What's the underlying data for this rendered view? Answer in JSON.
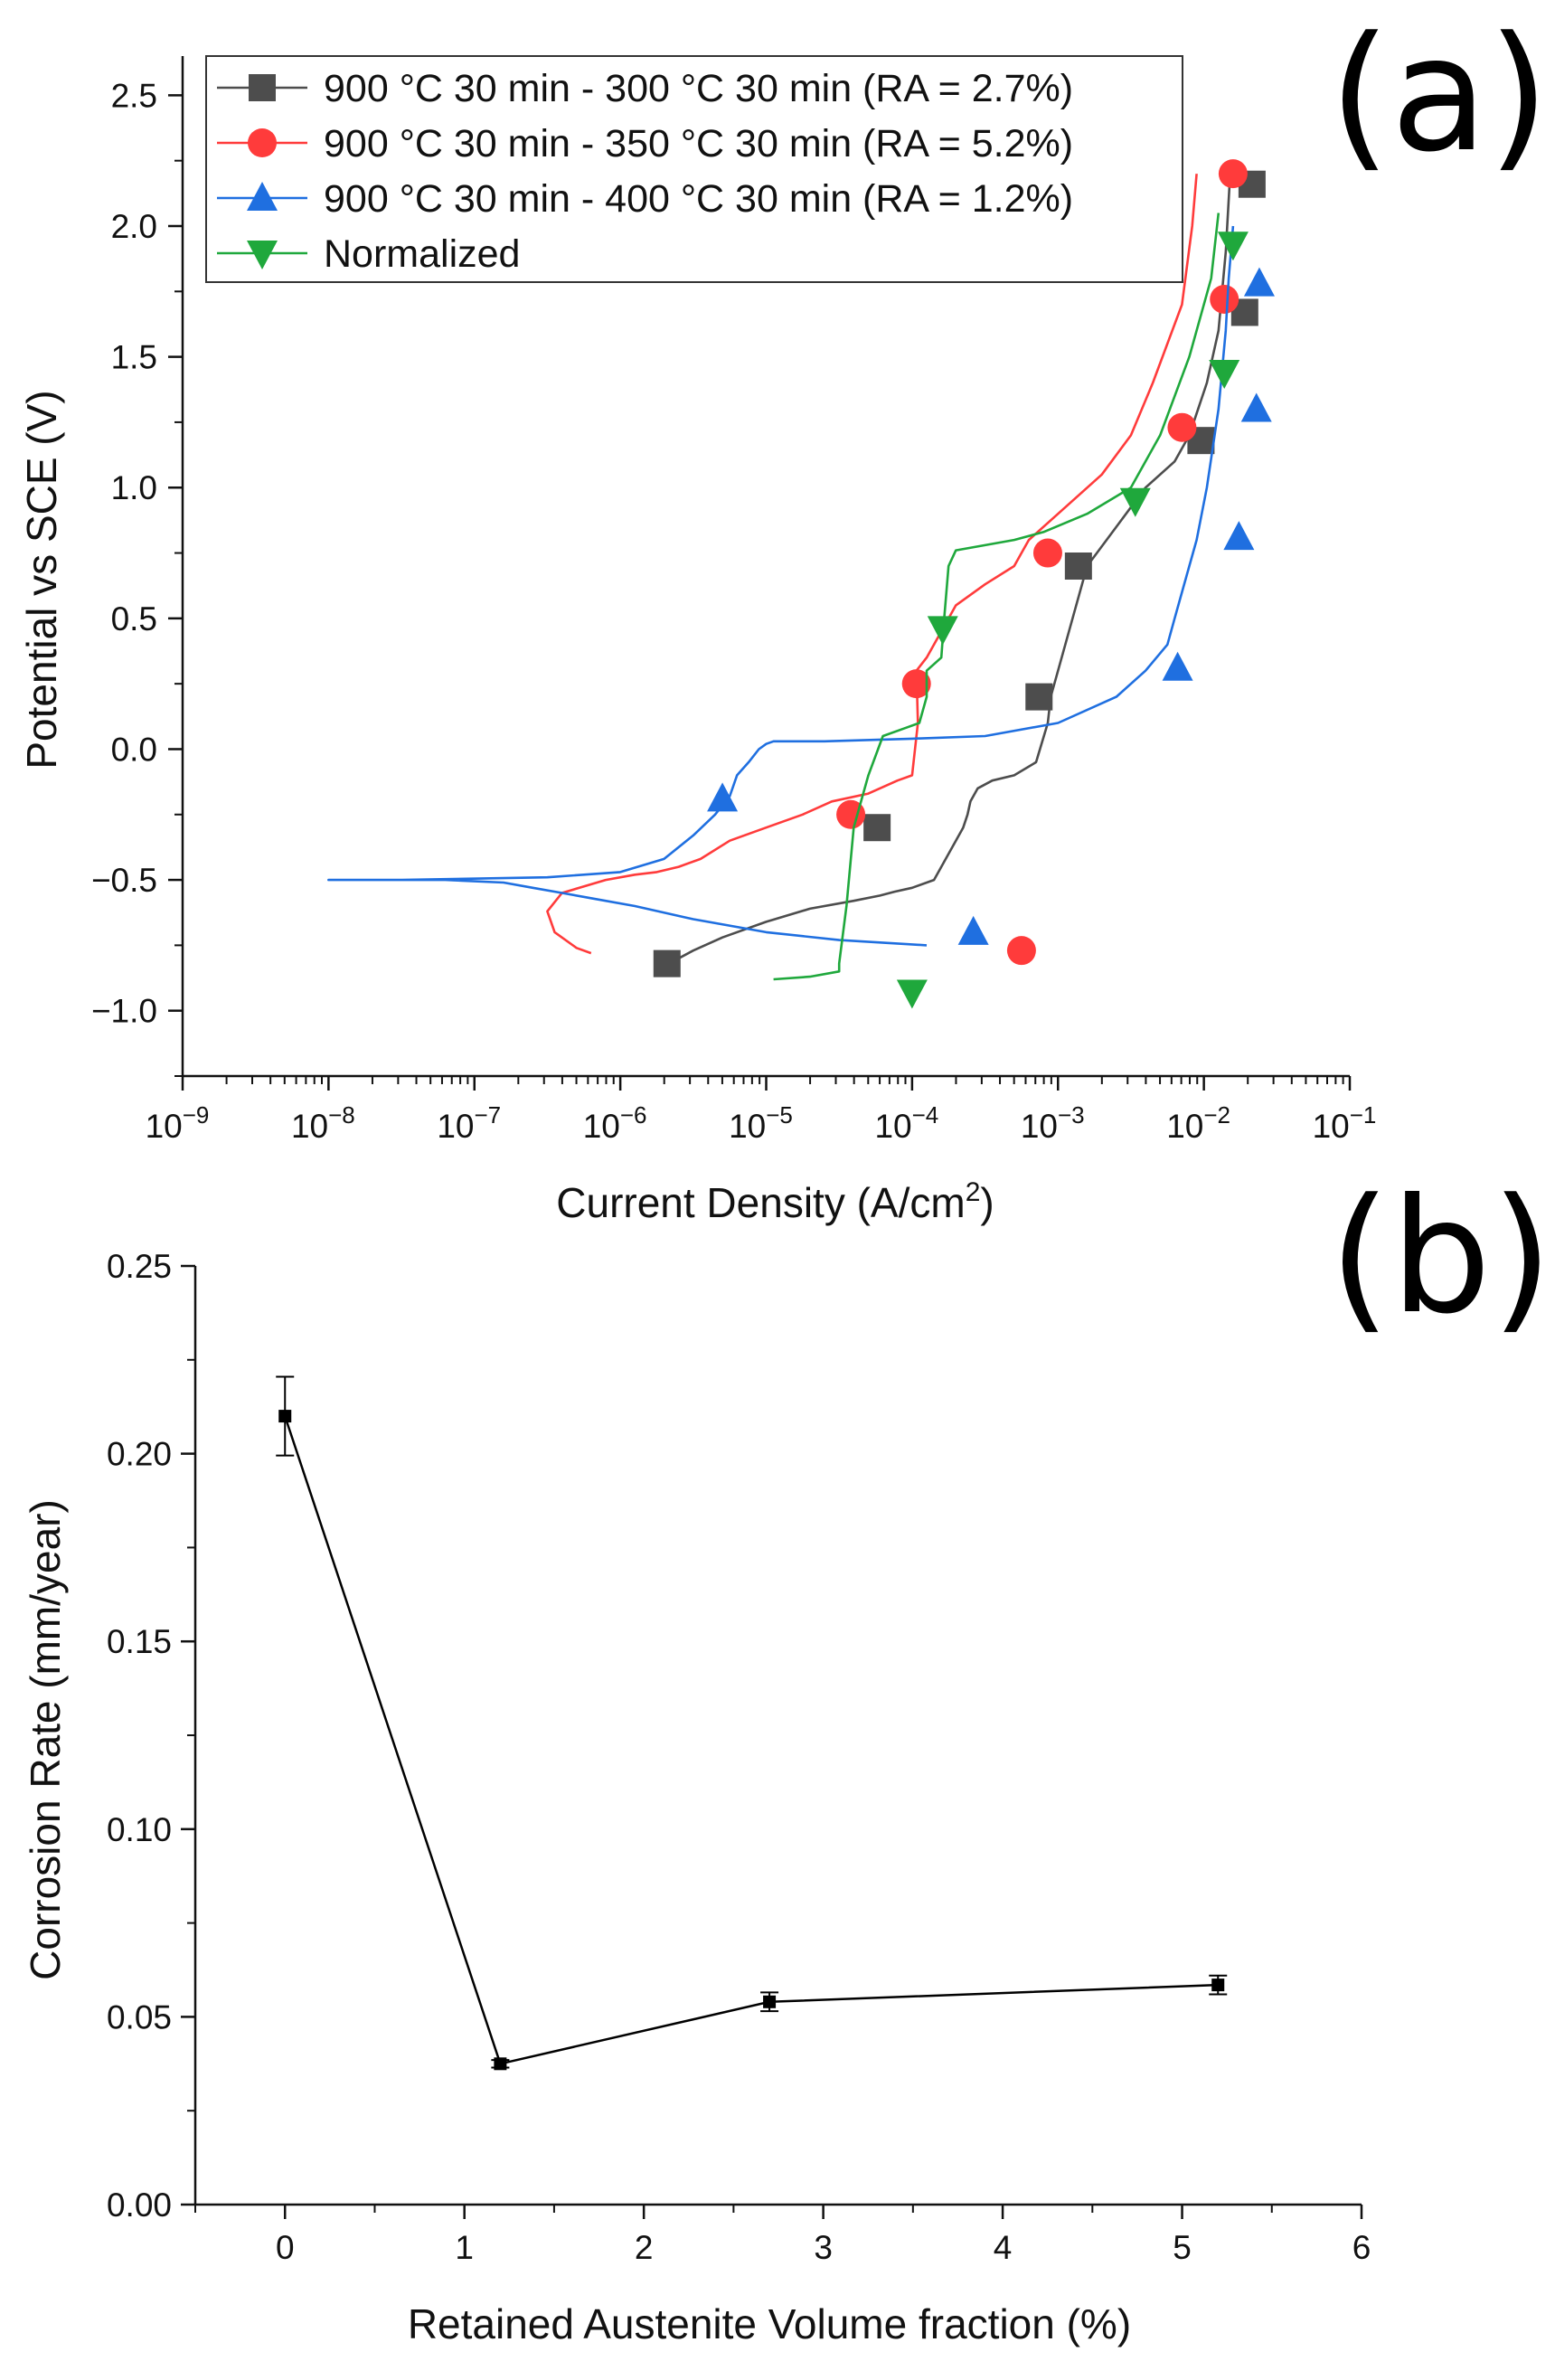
{
  "chart_data": [
    {
      "panel": "(a)",
      "type": "line",
      "xscale": "log",
      "xlabel": "Current Density (A/cm",
      "xlabel_sup": "2",
      "xlabel_end": ")",
      "ylabel": "Potential vs SCE (V)",
      "xlim_exp": [
        -9,
        -1
      ],
      "ylim": [
        -1.25,
        2.65
      ],
      "x_tick_exps": [
        -9,
        -8,
        -7,
        -6,
        -5,
        -4,
        -3,
        -2,
        -1
      ],
      "y_ticks": [
        2.5,
        2.0,
        1.5,
        1.0,
        0.5,
        0.0,
        -0.5,
        -1.0
      ],
      "y_tick_labels": [
        "2.5",
        "2.0",
        "1.5",
        "1.0",
        "0.5",
        "0.0",
        "−0.5",
        "−1.0"
      ],
      "legend_position": "top-left",
      "series": [
        {
          "name": "900 °C 30 min - 300 °C 30 min (RA = 2.7%)",
          "color": "#4d4d4d",
          "marker": "square",
          "curve_logx": [
            -5.66,
            -5.6,
            -5.5,
            -5.3,
            -5.0,
            -4.7,
            -4.4,
            -4.22,
            -4.12,
            -4.0,
            -3.85,
            -3.8,
            -3.75,
            -3.7,
            -3.65,
            -3.62,
            -3.6,
            -3.55,
            -3.45,
            -3.3,
            -3.15,
            -3.07,
            -3.05,
            -3.0,
            -2.9,
            -2.8,
            -2.6,
            -2.4,
            -2.2,
            -2.1,
            -1.98,
            -1.9,
            -1.85,
            -1.82
          ],
          "curve_y": [
            -0.82,
            -0.8,
            -0.77,
            -0.72,
            -0.66,
            -0.61,
            -0.58,
            -0.56,
            -0.545,
            -0.53,
            -0.5,
            -0.45,
            -0.4,
            -0.35,
            -0.3,
            -0.25,
            -0.2,
            -0.15,
            -0.12,
            -0.1,
            -0.05,
            0.1,
            0.2,
            0.3,
            0.5,
            0.7,
            0.85,
            1.0,
            1.1,
            1.2,
            1.4,
            1.6,
            1.9,
            2.2
          ],
          "markers_logx": [
            -5.68,
            -4.24,
            -3.13,
            -2.86,
            -2.02,
            -1.72,
            -1.67
          ],
          "markers_y": [
            -0.82,
            -0.3,
            0.2,
            0.7,
            1.18,
            1.67,
            2.16
          ]
        },
        {
          "name": "900 °C 30 min - 350 °C 30 min (RA = 5.2%)",
          "color": "#ff3b3b",
          "marker": "circle",
          "curve_logx": [
            -6.2,
            -6.3,
            -6.45,
            -6.5,
            -6.4,
            -6.1,
            -5.9,
            -5.75,
            -5.6,
            -5.45,
            -5.25,
            -5.0,
            -4.75,
            -4.55,
            -4.3,
            -4.1,
            -4.0,
            -3.96,
            -3.97,
            -3.9,
            -3.8,
            -3.7,
            -3.5,
            -3.3,
            -3.25,
            -3.2,
            -3.0,
            -2.7,
            -2.5,
            -2.35,
            -2.15,
            -2.08,
            -2.05
          ],
          "curve_y": [
            -0.78,
            -0.76,
            -0.7,
            -0.62,
            -0.55,
            -0.5,
            -0.48,
            -0.47,
            -0.45,
            -0.42,
            -0.35,
            -0.3,
            -0.25,
            -0.2,
            -0.17,
            -0.12,
            -0.1,
            0.1,
            0.3,
            0.35,
            0.45,
            0.55,
            0.63,
            0.7,
            0.75,
            0.8,
            0.9,
            1.05,
            1.2,
            1.4,
            1.7,
            2.0,
            2.2
          ],
          "markers_logx": [
            -3.25,
            -4.42,
            -3.97,
            -3.07,
            -2.15,
            -1.86,
            -1.8
          ],
          "markers_y": [
            -0.77,
            -0.25,
            0.25,
            0.75,
            1.23,
            1.72,
            2.2
          ]
        },
        {
          "name": "900 °C 30 min - 400 °C 30 min (RA = 1.2%)",
          "color": "#1f6fe0",
          "marker": "triangle-up",
          "curve_logx": [
            -3.9,
            -4.5,
            -5.0,
            -5.5,
            -5.9,
            -6.2,
            -6.4,
            -6.6,
            -6.8,
            -7.2,
            -8.0,
            -7.5,
            -6.5,
            -6.0,
            -5.7,
            -5.5,
            -5.35,
            -5.25,
            -5.2,
            -5.12,
            -5.05,
            -5.0,
            -4.95,
            -4.6,
            -4.0,
            -3.5,
            -3.0,
            -2.6,
            -2.4,
            -2.25,
            -2.2,
            -2.15,
            -2.05,
            -1.98,
            -1.9,
            -1.85,
            -1.83,
            -1.8
          ],
          "curve_y": [
            -0.75,
            -0.73,
            -0.7,
            -0.65,
            -0.6,
            -0.57,
            -0.55,
            -0.53,
            -0.51,
            -0.5,
            -0.5,
            -0.5,
            -0.49,
            -0.47,
            -0.42,
            -0.33,
            -0.25,
            -0.18,
            -0.1,
            -0.05,
            0.0,
            0.02,
            0.03,
            0.03,
            0.04,
            0.05,
            0.1,
            0.2,
            0.3,
            0.4,
            0.5,
            0.6,
            0.8,
            1.0,
            1.3,
            1.6,
            1.8,
            2.0
          ],
          "markers_logx": [
            -3.58,
            -5.3,
            -2.18,
            -1.76,
            -1.64,
            -1.62
          ],
          "markers_y": [
            -0.7,
            -0.19,
            0.31,
            0.81,
            1.3,
            1.78
          ]
        },
        {
          "name": "Normalized",
          "color": "#1fa83c",
          "marker": "triangle-down",
          "curve_logx": [
            -4.95,
            -4.7,
            -4.5,
            -4.5,
            -4.45,
            -4.4,
            -4.3,
            -4.2,
            -4.05,
            -3.95,
            -3.9,
            -3.9,
            -3.8,
            -3.78,
            -3.75,
            -3.7,
            -3.3,
            -3.1,
            -2.8,
            -2.5,
            -2.3,
            -2.1,
            -1.95,
            -1.9
          ],
          "curve_y": [
            -0.88,
            -0.87,
            -0.85,
            -0.82,
            -0.6,
            -0.3,
            -0.1,
            0.05,
            0.08,
            0.1,
            0.2,
            0.3,
            0.35,
            0.5,
            0.7,
            0.76,
            0.8,
            0.83,
            0.9,
            1.0,
            1.2,
            1.5,
            1.8,
            2.05
          ],
          "markers_logx": [
            -4.0,
            -3.79,
            -2.47,
            -1.86,
            -1.8
          ],
          "markers_y": [
            -0.93,
            0.46,
            0.95,
            1.44,
            1.93
          ]
        }
      ]
    },
    {
      "panel": "(b)",
      "type": "line",
      "xlabel": "Retained Austenite Volume fraction (%)",
      "ylabel": "Corrosion Rate (mm/year)",
      "xlim": [
        -0.5,
        6
      ],
      "ylim": [
        0,
        0.25
      ],
      "x_ticks": [
        0,
        1,
        2,
        3,
        4,
        5,
        6
      ],
      "x_tick_labels": [
        "0",
        "1",
        "2",
        "3",
        "4",
        "5",
        "6"
      ],
      "y_ticks": [
        0.0,
        0.05,
        0.1,
        0.15,
        0.2,
        0.25
      ],
      "y_tick_labels": [
        "0.00",
        "0.05",
        "0.10",
        "0.15",
        "0.20",
        "0.25"
      ],
      "color": "#000000",
      "x": [
        0,
        1.2,
        2.7,
        5.2
      ],
      "y": [
        0.21,
        0.0375,
        0.054,
        0.0585
      ],
      "yerr": [
        0.0105,
        0.001,
        0.0025,
        0.0025
      ]
    }
  ]
}
